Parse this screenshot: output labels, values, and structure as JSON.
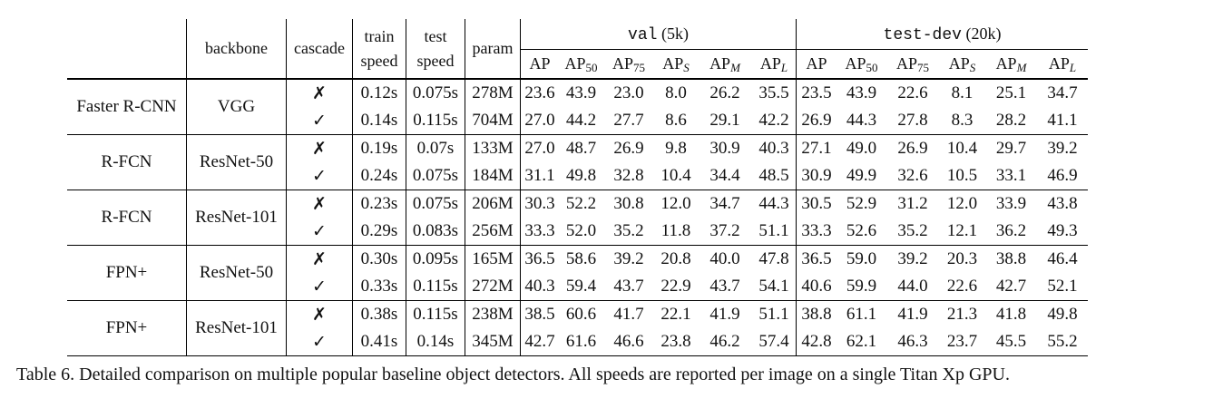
{
  "columns": {
    "backbone": "backbone",
    "cascade": "cascade",
    "train_speed": [
      "train",
      "speed"
    ],
    "test_speed": [
      "test",
      "speed"
    ],
    "param": "param",
    "val_group": {
      "name": "val",
      "count": "(5k)"
    },
    "testdev_group": {
      "name": "test-dev",
      "count": "(20k)"
    },
    "metrics": [
      {
        "base": "AP",
        "sub": ""
      },
      {
        "base": "AP",
        "sub": "50"
      },
      {
        "base": "AP",
        "sub": "75"
      },
      {
        "base": "AP",
        "sub": "S"
      },
      {
        "base": "AP",
        "sub": "M"
      },
      {
        "base": "AP",
        "sub": "L"
      }
    ]
  },
  "marks": {
    "no": "✗",
    "yes": "✓"
  },
  "groups": [
    {
      "detector": "Faster R-CNN",
      "backbone": "VGG",
      "rows": [
        {
          "cascade": "no",
          "train": "0.12s",
          "test": "0.075s",
          "param": "278M",
          "val": [
            "23.6",
            "43.9",
            "23.0",
            "8.0",
            "26.2",
            "35.5"
          ],
          "testdev": [
            "23.5",
            "43.9",
            "22.6",
            "8.1",
            "25.1",
            "34.7"
          ]
        },
        {
          "cascade": "yes",
          "train": "0.14s",
          "test": "0.115s",
          "param": "704M",
          "val": [
            "27.0",
            "44.2",
            "27.7",
            "8.6",
            "29.1",
            "42.2"
          ],
          "testdev": [
            "26.9",
            "44.3",
            "27.8",
            "8.3",
            "28.2",
            "41.1"
          ]
        }
      ]
    },
    {
      "detector": "R-FCN",
      "backbone": "ResNet-50",
      "rows": [
        {
          "cascade": "no",
          "train": "0.19s",
          "test": "0.07s",
          "param": "133M",
          "val": [
            "27.0",
            "48.7",
            "26.9",
            "9.8",
            "30.9",
            "40.3"
          ],
          "testdev": [
            "27.1",
            "49.0",
            "26.9",
            "10.4",
            "29.7",
            "39.2"
          ]
        },
        {
          "cascade": "yes",
          "train": "0.24s",
          "test": "0.075s",
          "param": "184M",
          "val": [
            "31.1",
            "49.8",
            "32.8",
            "10.4",
            "34.4",
            "48.5"
          ],
          "testdev": [
            "30.9",
            "49.9",
            "32.6",
            "10.5",
            "33.1",
            "46.9"
          ]
        }
      ]
    },
    {
      "detector": "R-FCN",
      "backbone": "ResNet-101",
      "rows": [
        {
          "cascade": "no",
          "train": "0.23s",
          "test": "0.075s",
          "param": "206M",
          "val": [
            "30.3",
            "52.2",
            "30.8",
            "12.0",
            "34.7",
            "44.3"
          ],
          "testdev": [
            "30.5",
            "52.9",
            "31.2",
            "12.0",
            "33.9",
            "43.8"
          ]
        },
        {
          "cascade": "yes",
          "train": "0.29s",
          "test": "0.083s",
          "param": "256M",
          "val": [
            "33.3",
            "52.0",
            "35.2",
            "11.8",
            "37.2",
            "51.1"
          ],
          "testdev": [
            "33.3",
            "52.6",
            "35.2",
            "12.1",
            "36.2",
            "49.3"
          ]
        }
      ]
    },
    {
      "detector": "FPN+",
      "backbone": "ResNet-50",
      "rows": [
        {
          "cascade": "no",
          "train": "0.30s",
          "test": "0.095s",
          "param": "165M",
          "val": [
            "36.5",
            "58.6",
            "39.2",
            "20.8",
            "40.0",
            "47.8"
          ],
          "testdev": [
            "36.5",
            "59.0",
            "39.2",
            "20.3",
            "38.8",
            "46.4"
          ]
        },
        {
          "cascade": "yes",
          "train": "0.33s",
          "test": "0.115s",
          "param": "272M",
          "val": [
            "40.3",
            "59.4",
            "43.7",
            "22.9",
            "43.7",
            "54.1"
          ],
          "testdev": [
            "40.6",
            "59.9",
            "44.0",
            "22.6",
            "42.7",
            "52.1"
          ]
        }
      ]
    },
    {
      "detector": "FPN+",
      "backbone": "ResNet-101",
      "rows": [
        {
          "cascade": "no",
          "train": "0.38s",
          "test": "0.115s",
          "param": "238M",
          "val": [
            "38.5",
            "60.6",
            "41.7",
            "22.1",
            "41.9",
            "51.1"
          ],
          "testdev": [
            "38.8",
            "61.1",
            "41.9",
            "21.3",
            "41.8",
            "49.8"
          ]
        },
        {
          "cascade": "yes",
          "train": "0.41s",
          "test": "0.14s",
          "param": "345M",
          "val": [
            "42.7",
            "61.6",
            "46.6",
            "23.8",
            "46.2",
            "57.4"
          ],
          "testdev": [
            "42.8",
            "62.1",
            "46.3",
            "23.7",
            "45.5",
            "55.2"
          ]
        }
      ]
    }
  ],
  "caption": "Table 6. Detailed comparison on multiple popular baseline object detectors. All speeds are reported per image on a single Titan Xp GPU."
}
